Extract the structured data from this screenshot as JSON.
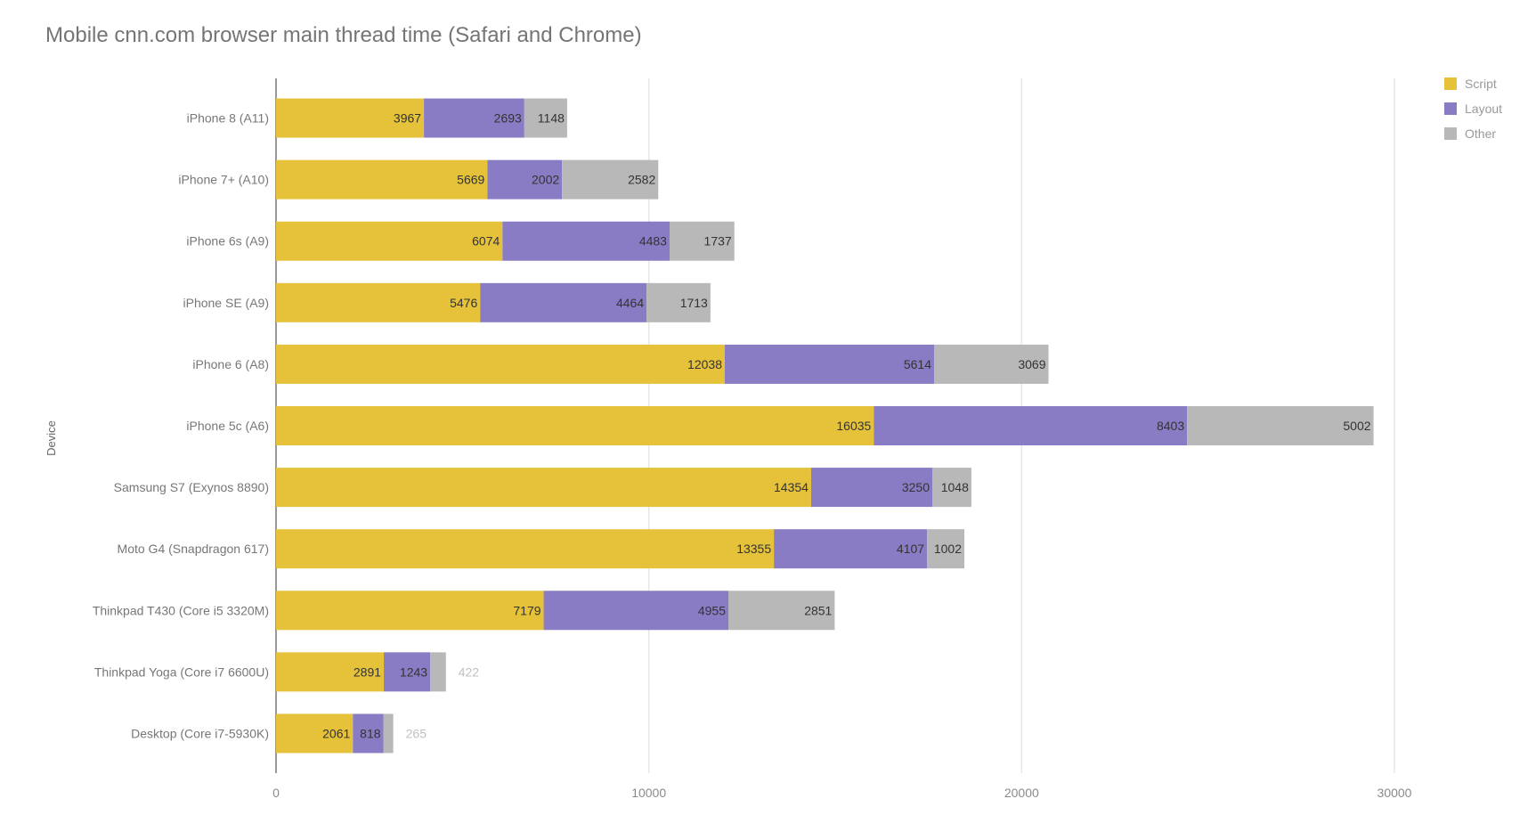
{
  "chart_data": {
    "type": "bar",
    "orientation": "horizontal",
    "stacked": true,
    "title": "Mobile cnn.com browser main thread time (Safari and Chrome)",
    "xlabel": "",
    "ylabel": "Device",
    "xlim": [
      0,
      30000
    ],
    "xticks": [
      0,
      10000,
      20000,
      30000
    ],
    "grid": true,
    "legend_position": "top-right",
    "categories": [
      "iPhone 8 (A11)",
      "iPhone 7+ (A10)",
      "iPhone 6s (A9)",
      "iPhone SE (A9)",
      "iPhone 6 (A8)",
      "iPhone 5c (A6)",
      "Samsung S7 (Exynos 8890)",
      "Moto G4 (Snapdragon 617)",
      "Thinkpad T430 (Core i5 3320M)",
      "Thinkpad Yoga (Core i7 6600U)",
      "Desktop (Core i7-5930K)"
    ],
    "series": [
      {
        "name": "Script",
        "color": "#e5c23a",
        "values": [
          3967,
          5669,
          6074,
          5476,
          12038,
          16035,
          14354,
          13355,
          7179,
          2891,
          2061
        ]
      },
      {
        "name": "Layout",
        "color": "#8a7cc4",
        "values": [
          2693,
          2002,
          4483,
          4464,
          5614,
          8403,
          3250,
          4107,
          4955,
          1243,
          818
        ]
      },
      {
        "name": "Other",
        "color": "#b8b8b8",
        "values": [
          1148,
          2582,
          1737,
          1713,
          3069,
          5002,
          1048,
          1002,
          2851,
          422,
          265
        ]
      }
    ]
  }
}
